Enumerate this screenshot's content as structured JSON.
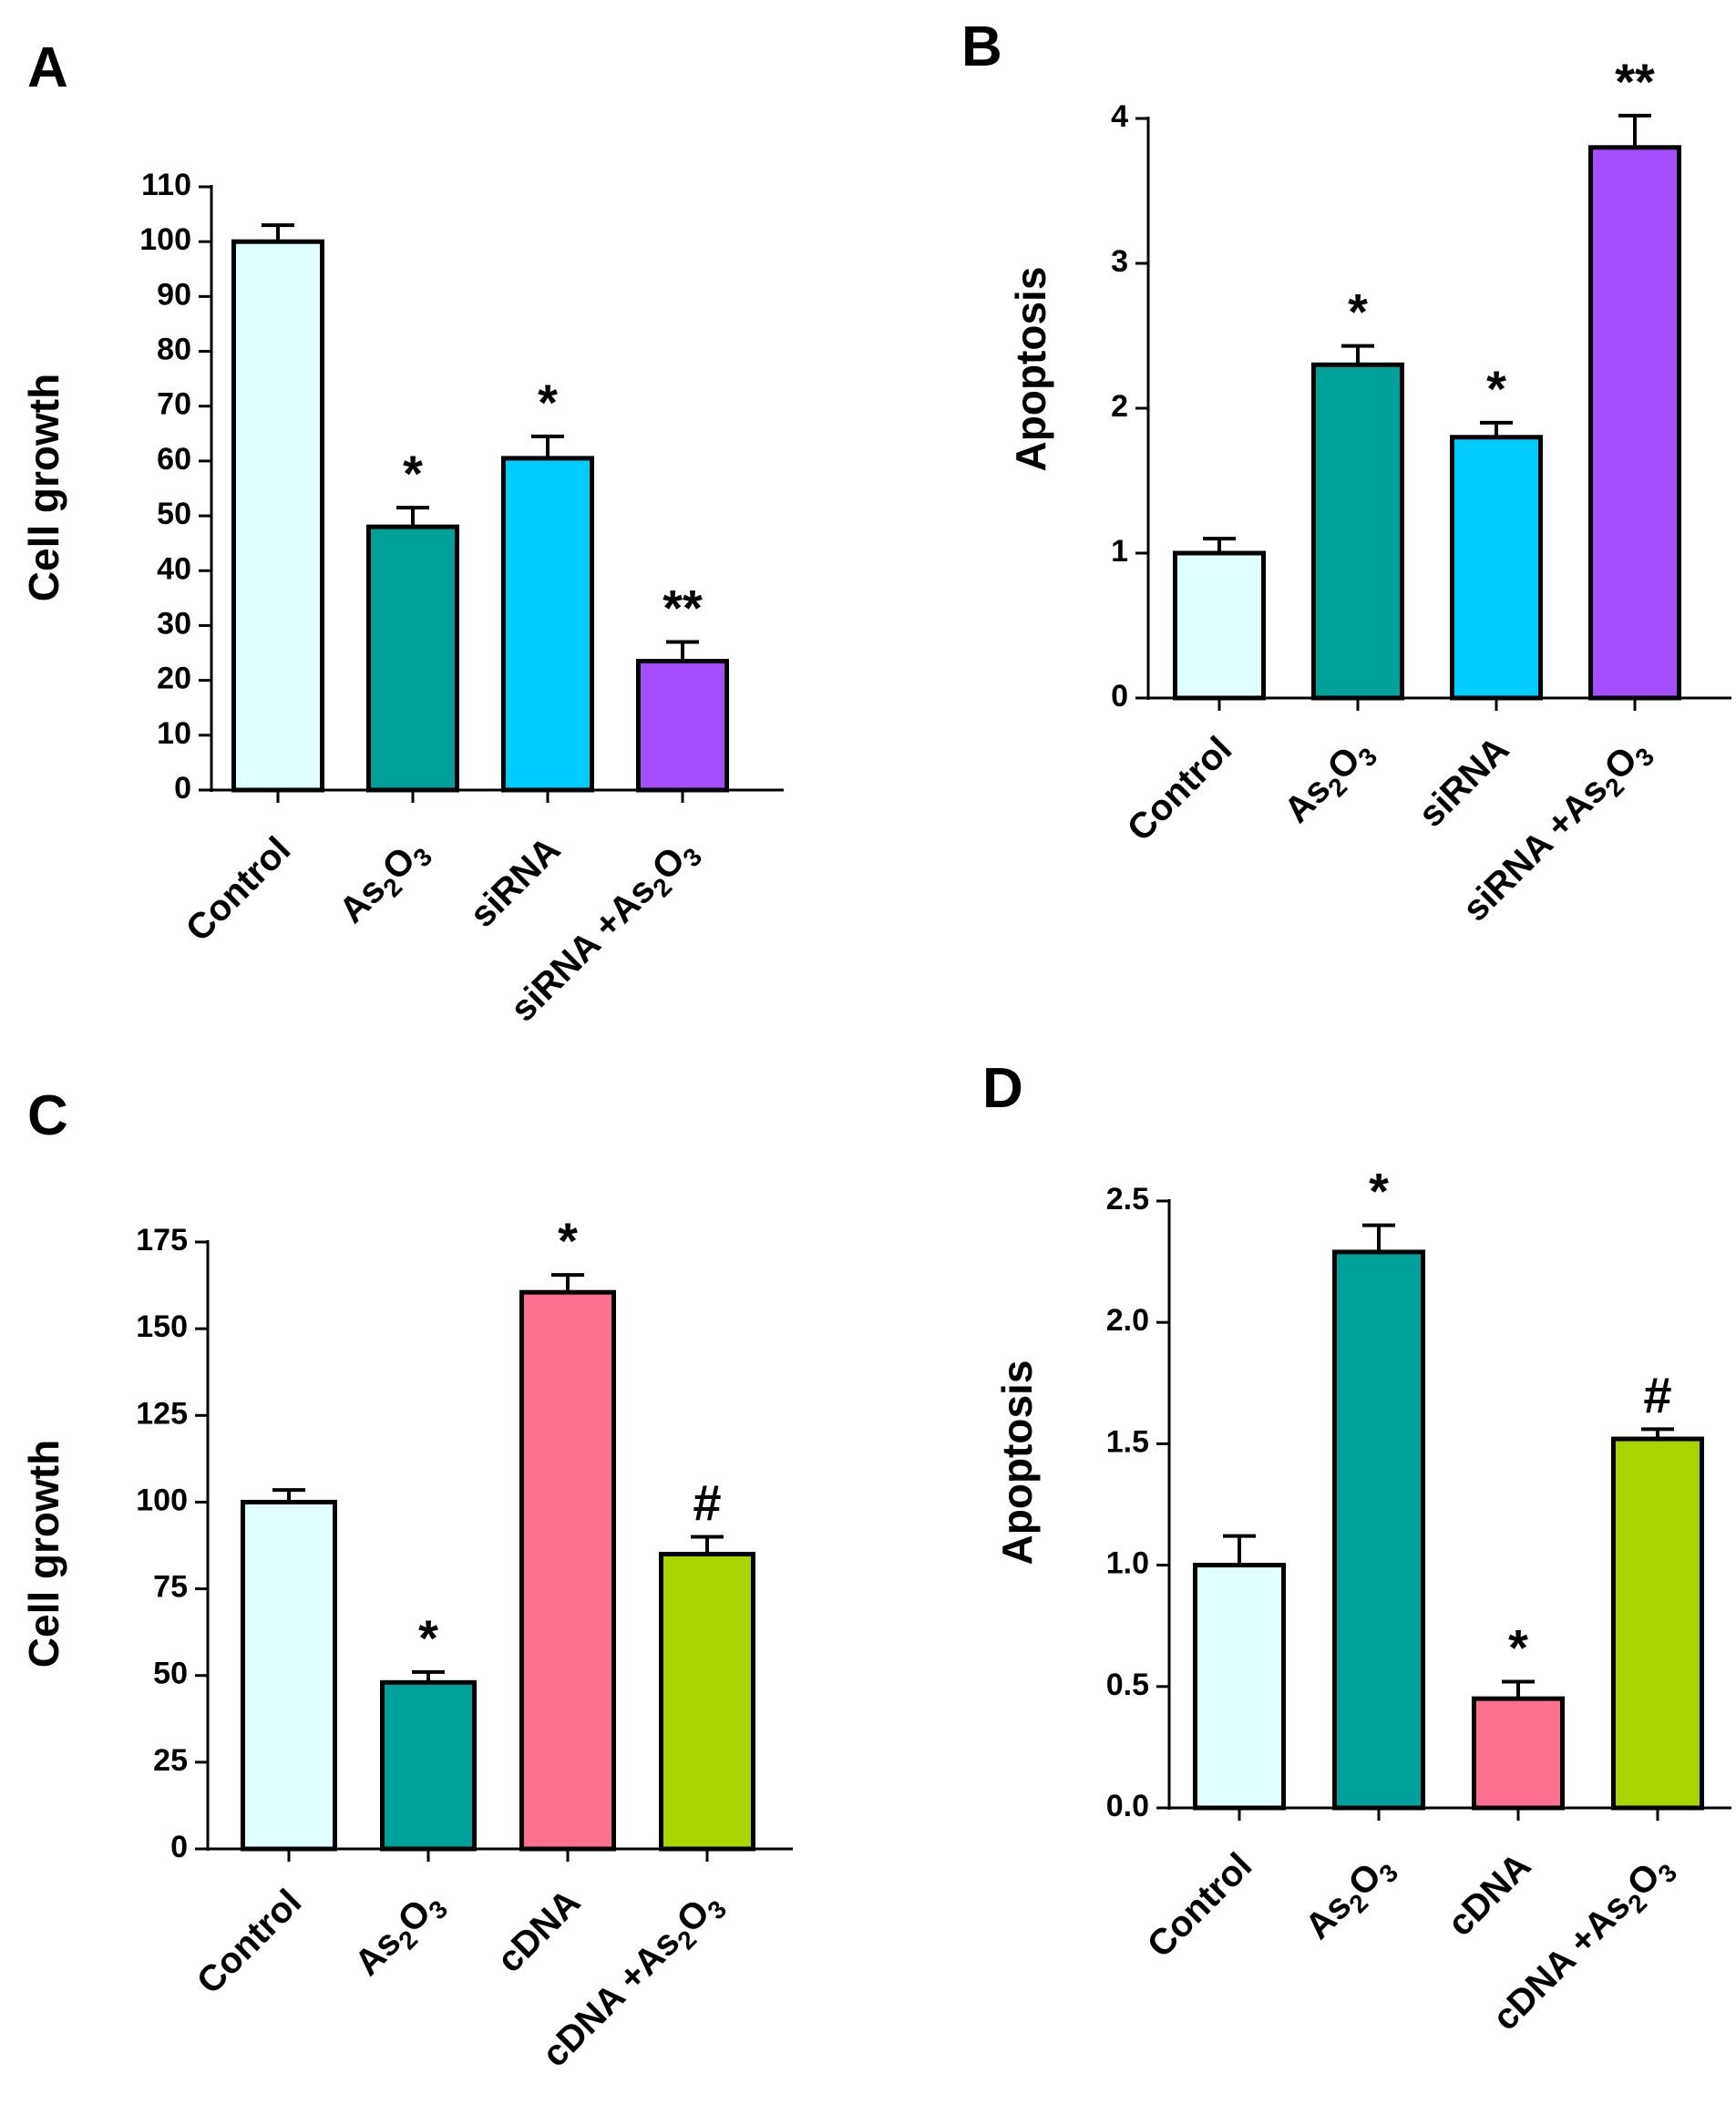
{
  "chart_data": [
    {
      "panel": "A",
      "type": "bar",
      "title": "",
      "xlabel": "",
      "ylabel": "Cell growth",
      "ylim": [
        0,
        110
      ],
      "yticks": [
        0,
        10,
        20,
        30,
        40,
        50,
        60,
        70,
        80,
        90,
        100,
        110
      ],
      "categories": [
        {
          "label": "Control"
        },
        {
          "label": "As",
          "sub1": "2",
          "mid": "O",
          "sub2": "3"
        },
        {
          "label": "siRNA"
        },
        {
          "label": "siRNA +As",
          "sub1": "2",
          "mid": "O",
          "sub2": "3"
        }
      ],
      "values": [
        100,
        48,
        60.5,
        23.5
      ],
      "errors": [
        3,
        3.5,
        4,
        3.5
      ],
      "significance": [
        "",
        "*",
        "*",
        "**"
      ],
      "colors": [
        "#e0ffff",
        "#00a19b",
        "#00ccff",
        "#a64dff"
      ]
    },
    {
      "panel": "B",
      "type": "bar",
      "title": "",
      "xlabel": "",
      "ylabel": "Apoptosis",
      "ylim": [
        0,
        4
      ],
      "yticks": [
        0,
        1,
        2,
        3,
        4
      ],
      "categories": [
        {
          "label": "Control"
        },
        {
          "label": "As",
          "sub1": "2",
          "mid": "O",
          "sub2": "3"
        },
        {
          "label": "siRNA"
        },
        {
          "label": "siRNA +As",
          "sub1": "2",
          "mid": "O",
          "sub2": "3"
        }
      ],
      "values": [
        1.0,
        2.3,
        1.8,
        3.8
      ],
      "errors": [
        0.1,
        0.13,
        0.1,
        0.22
      ],
      "significance": [
        "",
        "*",
        "*",
        "**"
      ],
      "colors": [
        "#e0ffff",
        "#00a19b",
        "#00ccff",
        "#a64dff"
      ]
    },
    {
      "panel": "C",
      "type": "bar",
      "title": "",
      "xlabel": "",
      "ylabel": "Cell growth",
      "ylim": [
        0,
        175
      ],
      "yticks": [
        0,
        25,
        50,
        75,
        100,
        125,
        150,
        175
      ],
      "categories": [
        {
          "label": "Control"
        },
        {
          "label": "As",
          "sub1": "2",
          "mid": "O",
          "sub2": "3"
        },
        {
          "label": "cDNA"
        },
        {
          "label": "cDNA +As",
          "sub1": "2",
          "mid": "O",
          "sub2": "3"
        }
      ],
      "values": [
        100,
        48,
        160.5,
        85
      ],
      "errors": [
        3.5,
        3,
        5,
        5
      ],
      "significance": [
        "",
        "*",
        "*",
        "#"
      ],
      "colors": [
        "#e0ffff",
        "#00a19b",
        "#ff7090",
        "#a8d400"
      ]
    },
    {
      "panel": "D",
      "type": "bar",
      "title": "",
      "xlabel": "",
      "ylabel": "Apoptosis",
      "ylim": [
        0,
        2.5
      ],
      "yticks": [
        "0.0",
        "0.5",
        "1.0",
        "1.5",
        "2.0",
        "2.5"
      ],
      "categories": [
        {
          "label": "Control"
        },
        {
          "label": "As",
          "sub1": "2",
          "mid": "O",
          "sub2": "3"
        },
        {
          "label": "cDNA"
        },
        {
          "label": "cDNA +As",
          "sub1": "2",
          "mid": "O",
          "sub2": "3"
        }
      ],
      "values": [
        1.0,
        2.29,
        0.45,
        1.52
      ],
      "errors": [
        0.12,
        0.11,
        0.07,
        0.04
      ],
      "significance": [
        "",
        "*",
        "*",
        "#"
      ],
      "colors": [
        "#e0ffff",
        "#00a19b",
        "#ff7090",
        "#a8d400"
      ]
    }
  ]
}
